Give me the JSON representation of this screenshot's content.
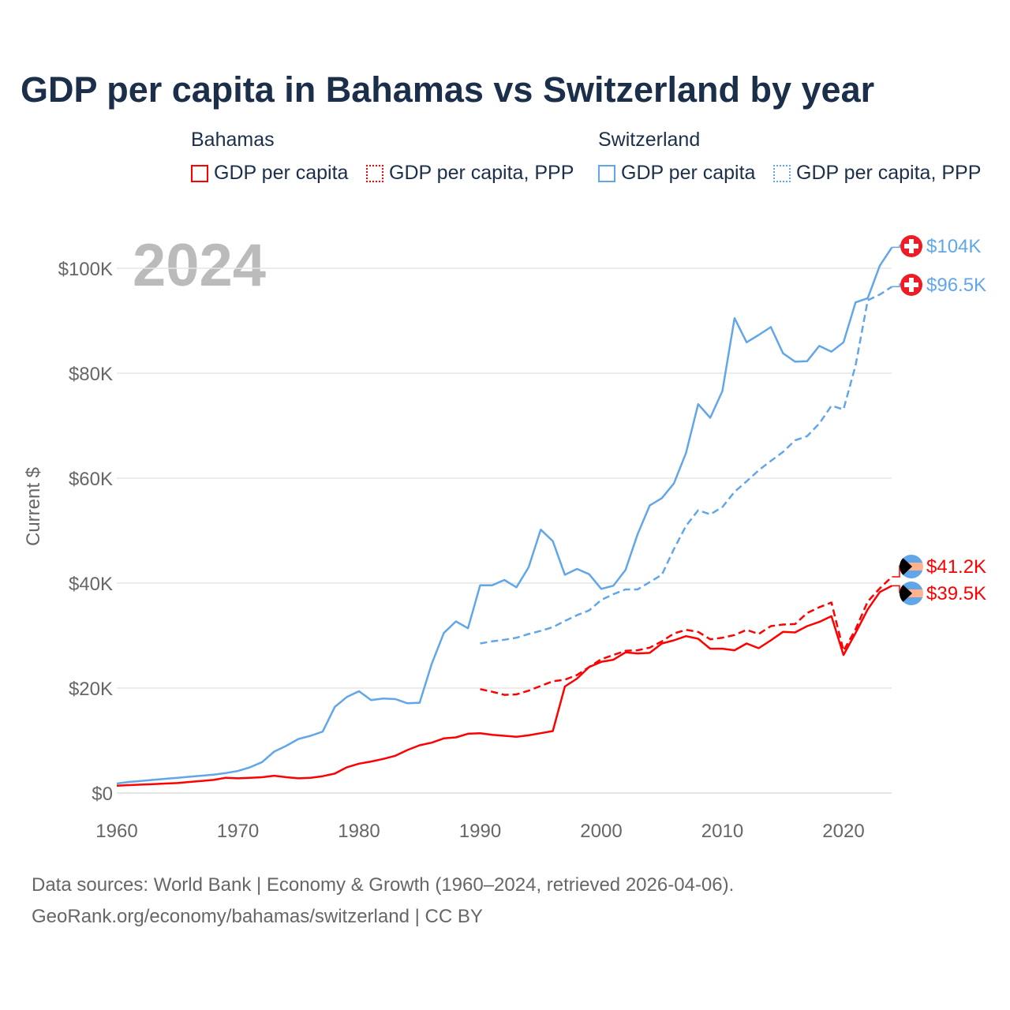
{
  "colors": {
    "bahamas": "#ff0000",
    "switzerland": "#62a6ea",
    "title": "#1b2f4b",
    "grid": "#e6e6e6",
    "axis_text": "#666666",
    "year_watermark": "#bbbbbb"
  },
  "chart_data": {
    "type": "line",
    "title": "GDP per capita in Bahamas vs Switzerland by year",
    "ylabel": "Current $",
    "xlabel": "",
    "xlim": [
      1960,
      2024
    ],
    "ylim": [
      0,
      104000
    ],
    "x_ticks": [
      1960,
      1970,
      1980,
      1990,
      2000,
      2010,
      2020
    ],
    "x_tick_labels": [
      "1960",
      "1970",
      "1980",
      "1990",
      "2000",
      "2010",
      "2020"
    ],
    "y_ticks": [
      0,
      20000,
      40000,
      60000,
      80000,
      100000
    ],
    "y_tick_labels": [
      "$0",
      "$20K",
      "$40K",
      "$60K",
      "$80K",
      "$100K"
    ],
    "grid": true,
    "year_watermark": "2024",
    "legend": {
      "placement": "top",
      "groups": [
        {
          "title": "Bahamas",
          "items": [
            "GDP per capita",
            "GDP per capita, PPP"
          ]
        },
        {
          "title": "Switzerland",
          "items": [
            "GDP per capita",
            "GDP per capita, PPP"
          ]
        }
      ]
    },
    "series": [
      {
        "name": "Switzerland GDP per capita",
        "country": "switzerland",
        "dashed": false,
        "start_year": 1960,
        "end_label": "$104K",
        "values": [
          1.8,
          2.1,
          2.3,
          2.5,
          2.7,
          2.9,
          3.1,
          3.3,
          3.5,
          3.8,
          4.2,
          4.9,
          5.9,
          7.9,
          9.0,
          10.3,
          10.9,
          11.7,
          16.4,
          18.3,
          19.4,
          17.7,
          18.0,
          17.9,
          17.1,
          17.2,
          24.6,
          30.5,
          32.7,
          31.4,
          39.6,
          39.6,
          40.6,
          39.2,
          43.0,
          50.2,
          48.0,
          41.6,
          42.7,
          41.7,
          38.9,
          39.5,
          42.5,
          49.3,
          54.8,
          56.2,
          59.0,
          64.8,
          74.1,
          71.5,
          76.6,
          90.5,
          85.9,
          87.3,
          88.8,
          83.8,
          82.2,
          82.3,
          85.2,
          84.1,
          85.9,
          93.5,
          94.3,
          100.5,
          104.0
        ]
      },
      {
        "name": "Switzerland GDP per capita, PPP",
        "country": "switzerland",
        "dashed": true,
        "start_year": 1990,
        "end_label": "$96.5K",
        "values": [
          28.5,
          28.9,
          29.2,
          29.6,
          30.3,
          30.9,
          31.6,
          32.8,
          33.9,
          34.8,
          36.8,
          37.9,
          38.8,
          38.8,
          40.2,
          41.6,
          46.5,
          50.9,
          53.9,
          53.1,
          54.5,
          57.4,
          59.4,
          61.5,
          63.3,
          65.0,
          67.2,
          68.0,
          70.4,
          73.8,
          73.1,
          81.5,
          93.9,
          95.0,
          96.5
        ]
      },
      {
        "name": "Bahamas GDP per capita, PPP",
        "country": "bahamas",
        "dashed": true,
        "start_year": 1990,
        "end_label": "$41.2K",
        "values": [
          19.8,
          19.3,
          18.7,
          18.8,
          19.5,
          20.4,
          21.3,
          21.6,
          22.5,
          24.0,
          25.5,
          26.3,
          27.1,
          27.2,
          27.7,
          28.9,
          30.4,
          31.1,
          30.7,
          29.3,
          29.6,
          30.1,
          31.1,
          30.3,
          31.8,
          32.1,
          32.2,
          34.3,
          35.4,
          36.3,
          27.1,
          31.2,
          36.5,
          39.0,
          41.2
        ]
      },
      {
        "name": "Bahamas GDP per capita",
        "country": "bahamas",
        "dashed": false,
        "start_year": 1960,
        "end_label": "$39.5K",
        "values": [
          1.4,
          1.5,
          1.6,
          1.7,
          1.8,
          1.9,
          2.1,
          2.3,
          2.5,
          2.9,
          2.8,
          2.9,
          3.0,
          3.3,
          3.0,
          2.8,
          2.9,
          3.2,
          3.7,
          4.9,
          5.6,
          6.0,
          6.5,
          7.1,
          8.2,
          9.1,
          9.6,
          10.4,
          10.6,
          11.3,
          11.4,
          11.1,
          10.9,
          10.7,
          11.0,
          11.4,
          11.8,
          20.3,
          21.8,
          24.0,
          25.0,
          25.4,
          26.8,
          26.6,
          26.7,
          28.5,
          29.1,
          29.9,
          29.4,
          27.5,
          27.5,
          27.2,
          28.5,
          27.6,
          29.1,
          30.7,
          30.6,
          31.8,
          32.6,
          33.7,
          26.3,
          30.5,
          35.0,
          38.3,
          39.5
        ]
      }
    ],
    "value_unit": "thousand current US$"
  },
  "icons": {
    "switzerland": "swiss-flag-icon",
    "bahamas": "bahamas-flag-icon"
  },
  "footer": {
    "line1": "Data sources: World Bank | Economy & Growth (1960–2024, retrieved 2026-04-06).",
    "line2": "GeoRank.org/economy/bahamas/switzerland | CC BY"
  }
}
